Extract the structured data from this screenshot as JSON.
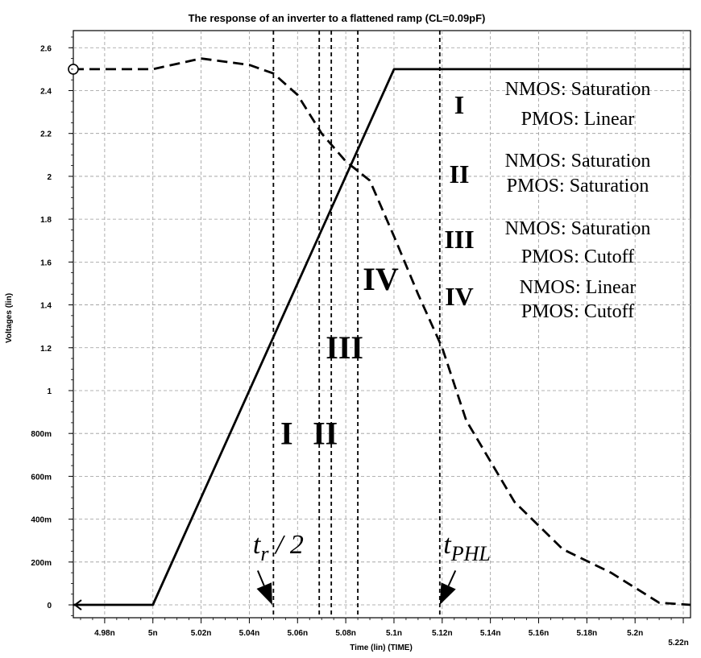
{
  "chart_data": {
    "type": "line",
    "title": "The response of an inverter to a flattened ramp (CL=0.09pF)",
    "xlabel": "Time (lin) (TIME)",
    "ylabel": "Voltages (lin)",
    "xlim": [
      4.967,
      5.223
    ],
    "ylim": [
      -0.06,
      2.68
    ],
    "grid": true,
    "x_ticks": [
      {
        "value": 4.98,
        "label": "4.98n"
      },
      {
        "value": 5.0,
        "label": "5n"
      },
      {
        "value": 5.02,
        "label": "5.02n"
      },
      {
        "value": 5.04,
        "label": "5.04n"
      },
      {
        "value": 5.06,
        "label": "5.06n"
      },
      {
        "value": 5.08,
        "label": "5.08n"
      },
      {
        "value": 5.1,
        "label": "5.1n"
      },
      {
        "value": 5.12,
        "label": "5.12n"
      },
      {
        "value": 5.14,
        "label": "5.14n"
      },
      {
        "value": 5.16,
        "label": "5.16n"
      },
      {
        "value": 5.18,
        "label": "5.18n"
      },
      {
        "value": 5.2,
        "label": "5.2n"
      },
      {
        "value": 5.22,
        "label": "5.22n"
      }
    ],
    "y_ticks": [
      {
        "value": 0,
        "label": "0"
      },
      {
        "value": 0.2,
        "label": "200m"
      },
      {
        "value": 0.4,
        "label": "400m"
      },
      {
        "value": 0.6,
        "label": "600m"
      },
      {
        "value": 0.8,
        "label": "800m"
      },
      {
        "value": 1.0,
        "label": "1"
      },
      {
        "value": 1.2,
        "label": "1.2"
      },
      {
        "value": 1.4,
        "label": "1.4"
      },
      {
        "value": 1.6,
        "label": "1.6"
      },
      {
        "value": 1.8,
        "label": "1.8"
      },
      {
        "value": 2.0,
        "label": "2"
      },
      {
        "value": 2.2,
        "label": "2.2"
      },
      {
        "value": 2.4,
        "label": "2.4"
      },
      {
        "value": 2.6,
        "label": "2.6"
      }
    ],
    "series": [
      {
        "style": "solid",
        "x": [
          4.967,
          5.0,
          5.1,
          5.223
        ],
        "y": [
          0,
          0,
          2.5,
          2.5
        ]
      },
      {
        "style": "dashed",
        "x": [
          4.967,
          5.0,
          5.02,
          5.04,
          5.05,
          5.06,
          5.07,
          5.08,
          5.09,
          5.1,
          5.11,
          5.12,
          5.13,
          5.15,
          5.17,
          5.19,
          5.21,
          5.223
        ],
        "y": [
          2.5,
          2.5,
          2.55,
          2.52,
          2.48,
          2.38,
          2.2,
          2.07,
          1.98,
          1.72,
          1.45,
          1.2,
          0.86,
          0.48,
          0.26,
          0.15,
          0.01,
          0
        ]
      }
    ],
    "vlines": [
      5.05,
      5.069,
      5.074,
      5.085,
      5.119
    ],
    "region_labels": [
      {
        "label": "I",
        "x": 5.0555,
        "y": 0.75
      },
      {
        "label": "II",
        "x": 5.0715,
        "y": 0.75
      },
      {
        "label": "III",
        "x": 5.0795,
        "y": 1.15
      },
      {
        "label": "IV",
        "x": 5.0945,
        "y": 1.47
      }
    ],
    "annotations": [
      {
        "text_main": "t",
        "text_sub": "r",
        "text_tail": " / 2",
        "x": 5.0415,
        "y": 0.24,
        "arrow_from": [
          5.0435,
          0.16
        ],
        "arrow_to": [
          5.0495,
          0.0
        ]
      },
      {
        "text_main": "t",
        "text_sub": "PHL",
        "x": 5.1205,
        "y": 0.24,
        "arrow_from": [
          5.1255,
          0.16
        ],
        "arrow_to": [
          5.119,
          0.0
        ]
      }
    ],
    "legend": [
      {
        "region": "I",
        "nmos": "NMOS: Saturation",
        "pmos": "PMOS: Linear"
      },
      {
        "region": "II",
        "nmos": "NMOS: Saturation",
        "pmos": "PMOS: Saturation"
      },
      {
        "region": "III",
        "nmos": "NMOS: Saturation",
        "pmos": "PMOS: Cutoff"
      },
      {
        "region": "IV",
        "nmos": "NMOS: Linear",
        "pmos": "PMOS:  Cutoff"
      }
    ]
  }
}
